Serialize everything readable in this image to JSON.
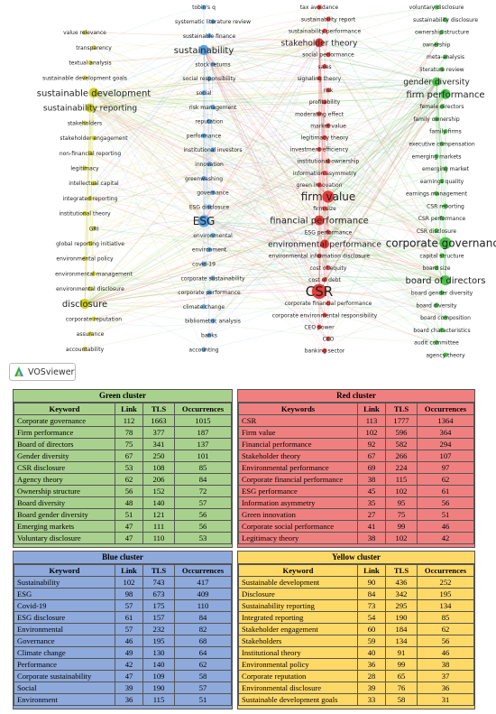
{
  "network": {
    "clusters": [
      {
        "id": "yellow",
        "color": "#c8c800",
        "edge": "#d8d860"
      },
      {
        "id": "blue",
        "color": "#3f8fd8",
        "edge": "#8ab8e4"
      },
      {
        "id": "red",
        "color": "#e02020",
        "edge": "#ef6a6a"
      },
      {
        "id": "green",
        "color": "#2eb82e",
        "edge": "#70cc70"
      }
    ],
    "labels": {
      "yellow": [
        "value relevance",
        "transparency",
        "textual analysis",
        "sustainable development goals",
        "sustainable development",
        "sustainability reporting",
        "stakeholders",
        "stakeholder engagement",
        "non-financial reporting",
        "legitimacy",
        "intellectual capital",
        "integrated reporting",
        "institutional theory",
        "GRI",
        "global reporting initiative",
        "environmental policy",
        "environmental management",
        "environmental disclosure",
        "disclosure",
        "corporate reputation",
        "assurance",
        "accountability"
      ],
      "blue": [
        "tobin's q",
        "systematic literature review",
        "sustainable finance",
        "sustainability",
        "stock returns",
        "social responsibility",
        "social",
        "risk management",
        "reputation",
        "performance",
        "institutional investors",
        "innovation",
        "greenwashing",
        "governance",
        "ESG disclosure",
        "ESG",
        "environmental",
        "environment",
        "covid-19",
        "corporate sustainability",
        "corporate performance",
        "climate change",
        "bibliometric analysis",
        "banks",
        "accounting"
      ],
      "red": [
        "tax avoidance",
        "sustainability report",
        "sustainability performance",
        "stakeholder theory",
        "social performance",
        "sales",
        "signaling theory",
        "risk",
        "profitability",
        "moderating effect",
        "market value",
        "legitimacy theory",
        "investment efficiency",
        "institutional ownership",
        "information asymmetry",
        "green innovation",
        "firm value",
        "firm size",
        "financial performance",
        "ESG performance",
        "environmental performance",
        "environmental information disclosure",
        "cost of equity",
        "cost of debt",
        "CSR",
        "corporate financial performance",
        "corporate environmental responsibility",
        "CEO power",
        "CEO",
        "banking sector"
      ],
      "green": [
        "voluntary disclosure",
        "sustainability disclosure",
        "ownership structure",
        "ownership",
        "meta-analysis",
        "literature review",
        "gender diversity",
        "firm performance",
        "female directors",
        "family ownership",
        "family firms",
        "executive compensation",
        "emerging markets",
        "emerging market",
        "earnings quality",
        "earnings management",
        "CSR reporting",
        "CSR performance",
        "CSR disclosure",
        "corporate governance",
        "capital structure",
        "board size",
        "board of directors",
        "board gender diversity",
        "board diversity",
        "board composition",
        "board characteristics",
        "audit committee",
        "agency theory"
      ]
    }
  },
  "badge": {
    "label": "VOSviewer"
  },
  "green_cluster": {
    "title": "Green cluster",
    "headers": [
      "Keyword",
      "Link",
      "TLS",
      "Occurrences"
    ],
    "rows": [
      [
        "Corporate governance",
        "112",
        "1663",
        "1015"
      ],
      [
        "Firm performance",
        "78",
        "377",
        "187"
      ],
      [
        "Board of directors",
        "75",
        "341",
        "137"
      ],
      [
        "Gender diversity",
        "67",
        "250",
        "101"
      ],
      [
        "CSR disclosure",
        "53",
        "108",
        "85"
      ],
      [
        "Agency theory",
        "62",
        "206",
        "84"
      ],
      [
        "Ownership structure",
        "56",
        "152",
        "72"
      ],
      [
        "Board diversity",
        "48",
        "140",
        "57"
      ],
      [
        "Board gender diversity",
        "51",
        "121",
        "56"
      ],
      [
        "Emerging markets",
        "47",
        "111",
        "56"
      ],
      [
        "Voluntary disclosure",
        "47",
        "110",
        "53"
      ]
    ]
  },
  "red_cluster": {
    "title": "Red cluster",
    "headers": [
      "Keywords",
      "Link",
      "TLS",
      "Occurrences"
    ],
    "rows": [
      [
        "CSR",
        "113",
        "1777",
        "1364"
      ],
      [
        "Firm value",
        "102",
        "596",
        "364"
      ],
      [
        "Financial performance",
        "92",
        "582",
        "294"
      ],
      [
        "Stakeholder theory",
        "67",
        "266",
        "107"
      ],
      [
        "Environmental performance",
        "69",
        "224",
        "97"
      ],
      [
        "Corporate financial performance",
        "38",
        "115",
        "62"
      ],
      [
        "ESG performance",
        "45",
        "102",
        "61"
      ],
      [
        "Information asymmetry",
        "35",
        "95",
        "56"
      ],
      [
        "Green innovation",
        "27",
        "75",
        "51"
      ],
      [
        "Corporate social performance",
        "41",
        "99",
        "46"
      ],
      [
        "Legitimacy theory",
        "38",
        "102",
        "42"
      ]
    ]
  },
  "blue_cluster": {
    "title": "Blue cluster",
    "headers": [
      "Keyword",
      "Link",
      "TLS",
      "Occurrences"
    ],
    "rows": [
      [
        "Sustainability",
        "102",
        "743",
        "417"
      ],
      [
        "ESG",
        "98",
        "673",
        "409"
      ],
      [
        "Covid-19",
        "57",
        "175",
        "110"
      ],
      [
        "ESG disclosure",
        "61",
        "157",
        "84"
      ],
      [
        "Environmental",
        "57",
        "232",
        "82"
      ],
      [
        "Governance",
        "46",
        "195",
        "68"
      ],
      [
        "Climate change",
        "49",
        "130",
        "64"
      ],
      [
        "Performance",
        "42",
        "140",
        "62"
      ],
      [
        "Corporate sustainability",
        "47",
        "109",
        "58"
      ],
      [
        "Social",
        "39",
        "190",
        "57"
      ],
      [
        "Environment",
        "36",
        "115",
        "51"
      ]
    ]
  },
  "yellow_cluster": {
    "title": "Yellow cluster",
    "headers": [
      "Keyword",
      "Link",
      "TLS",
      "Occurrences"
    ],
    "rows": [
      [
        "Sustainable development",
        "90",
        "436",
        "252"
      ],
      [
        "Disclosure",
        "84",
        "342",
        "195"
      ],
      [
        "Sustainability reporting",
        "73",
        "295",
        "134"
      ],
      [
        "Integrated reporting",
        "54",
        "190",
        "85"
      ],
      [
        "Stakeholder engagement",
        "60",
        "184",
        "62"
      ],
      [
        "Stakeholders",
        "59",
        "134",
        "56"
      ],
      [
        "Institutional theory",
        "40",
        "91",
        "46"
      ],
      [
        "Environmental policy",
        "36",
        "99",
        "38"
      ],
      [
        "Corporate reputation",
        "28",
        "65",
        "37"
      ],
      [
        "Environmental disclosure",
        "39",
        "76",
        "36"
      ],
      [
        "Sustainable development goals",
        "33",
        "58",
        "31"
      ]
    ]
  }
}
